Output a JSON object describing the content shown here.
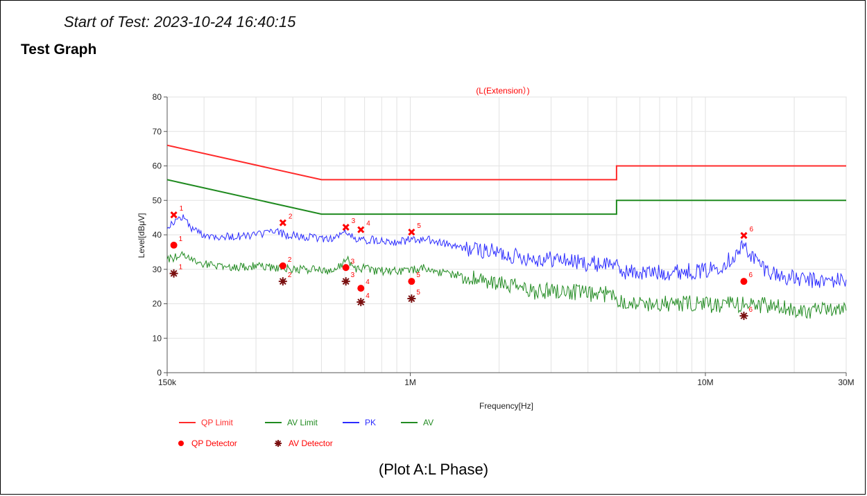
{
  "header": {
    "start_of_test": "Start of Test: 2023-10-24 16:40:15",
    "graph_heading": "Test Graph"
  },
  "caption": "(Plot A:L Phase)",
  "colors": {
    "qp_limit": "#ff2a2a",
    "av_limit": "#1f8a1f",
    "pk": "#2b2bff",
    "av": "#228b22",
    "qp_detector": "#ff0000",
    "av_detector": "#7a1010",
    "marker_label": "#ff0000"
  },
  "chart_data": {
    "type": "line",
    "title": "(L(Extension）)",
    "xlabel": "Frequency[Hz]",
    "ylabel": "Level[dBμV]",
    "x_scale": "log",
    "xlim": [
      150000,
      30000000
    ],
    "ylim": [
      0,
      80
    ],
    "x_ticks": [
      {
        "value": 150000,
        "label": "150k"
      },
      {
        "value": 1000000,
        "label": "1M"
      },
      {
        "value": 10000000,
        "label": "10M"
      },
      {
        "value": 30000000,
        "label": "30M"
      }
    ],
    "y_ticks": [
      0,
      10,
      20,
      30,
      40,
      50,
      60,
      70,
      80
    ],
    "grid": true,
    "legend_position": "bottom-left",
    "series": [
      {
        "name": "QP Limit",
        "kind": "line",
        "color": "#ff2a2a",
        "points": [
          [
            150000,
            66
          ],
          [
            500000,
            56
          ],
          [
            5000000,
            56
          ],
          [
            5000000,
            60
          ],
          [
            30000000,
            60
          ]
        ]
      },
      {
        "name": "AV Limit",
        "kind": "line",
        "color": "#1f8a1f",
        "points": [
          [
            150000,
            56
          ],
          [
            500000,
            46
          ],
          [
            5000000,
            46
          ],
          [
            5000000,
            50
          ],
          [
            30000000,
            50
          ]
        ]
      },
      {
        "name": "PK",
        "kind": "line",
        "color": "#2b2bff",
        "points": [
          [
            150000,
            42.5
          ],
          [
            160000,
            43.8
          ],
          [
            170000,
            45.5
          ],
          [
            180000,
            42.0
          ],
          [
            200000,
            40.0
          ],
          [
            230000,
            39.5
          ],
          [
            260000,
            39.5
          ],
          [
            300000,
            40.0
          ],
          [
            350000,
            41.0
          ],
          [
            380000,
            40.0
          ],
          [
            420000,
            39.5
          ],
          [
            480000,
            39.0
          ],
          [
            550000,
            39.0
          ],
          [
            610000,
            41.0
          ],
          [
            650000,
            38.5
          ],
          [
            700000,
            38.5
          ],
          [
            800000,
            38.5
          ],
          [
            900000,
            38.0
          ],
          [
            1000000,
            38.5
          ],
          [
            1150000,
            38.5
          ],
          [
            1300000,
            37.5
          ],
          [
            1500000,
            36.0
          ],
          [
            1800000,
            35.5
          ],
          [
            2200000,
            34.0
          ],
          [
            2700000,
            33.0
          ],
          [
            3200000,
            33.0
          ],
          [
            3700000,
            32.0
          ],
          [
            4300000,
            31.5
          ],
          [
            4900000,
            32.0
          ],
          [
            5100000,
            29.5
          ],
          [
            6000000,
            29.0
          ],
          [
            7000000,
            29.0
          ],
          [
            8500000,
            29.5
          ],
          [
            10000000,
            29.5
          ],
          [
            11500000,
            31.5
          ],
          [
            12800000,
            34.5
          ],
          [
            13500000,
            37.0
          ],
          [
            14500000,
            33.5
          ],
          [
            16000000,
            30.0
          ],
          [
            18000000,
            28.0
          ],
          [
            21000000,
            27.0
          ],
          [
            25000000,
            26.5
          ],
          [
            30000000,
            27.0
          ]
        ]
      },
      {
        "name": "AV",
        "kind": "line",
        "color": "#228b22",
        "points": [
          [
            150000,
            33.0
          ],
          [
            160000,
            33.5
          ],
          [
            170000,
            34.5
          ],
          [
            180000,
            33.0
          ],
          [
            200000,
            31.5
          ],
          [
            230000,
            31.0
          ],
          [
            260000,
            30.5
          ],
          [
            300000,
            31.0
          ],
          [
            350000,
            30.5
          ],
          [
            400000,
            30.0
          ],
          [
            480000,
            30.0
          ],
          [
            550000,
            29.5
          ],
          [
            610000,
            33.0
          ],
          [
            650000,
            30.0
          ],
          [
            700000,
            30.5
          ],
          [
            750000,
            29.5
          ],
          [
            850000,
            29.5
          ],
          [
            1000000,
            29.5
          ],
          [
            1100000,
            30.5
          ],
          [
            1200000,
            29.5
          ],
          [
            1400000,
            28.5
          ],
          [
            1600000,
            27.5
          ],
          [
            1900000,
            26.0
          ],
          [
            2300000,
            25.0
          ],
          [
            2600000,
            23.5
          ],
          [
            3000000,
            24.0
          ],
          [
            3500000,
            23.5
          ],
          [
            4200000,
            22.5
          ],
          [
            4900000,
            23.0
          ],
          [
            5100000,
            21.0
          ],
          [
            6000000,
            20.0
          ],
          [
            7500000,
            20.0
          ],
          [
            9000000,
            20.0
          ],
          [
            11000000,
            19.5
          ],
          [
            13500000,
            20.0
          ],
          [
            16000000,
            19.5
          ],
          [
            19000000,
            18.5
          ],
          [
            23000000,
            18.0
          ],
          [
            30000000,
            18.0
          ]
        ]
      }
    ],
    "qp_peak_markers": [
      {
        "id": "1",
        "x": 158000,
        "y": 45.8
      },
      {
        "id": "2",
        "x": 370000,
        "y": 43.5
      },
      {
        "id": "3",
        "x": 605000,
        "y": 42.2
      },
      {
        "id": "4",
        "x": 680000,
        "y": 41.5
      },
      {
        "id": "5",
        "x": 1010000,
        "y": 40.8
      },
      {
        "id": "6",
        "x": 13500000,
        "y": 39.8
      }
    ],
    "detectors": [
      {
        "name": "QP Detector",
        "color": "#ff0000",
        "points": [
          {
            "id": "1",
            "x": 158000,
            "y": 37.0
          },
          {
            "id": "2",
            "x": 370000,
            "y": 31.0
          },
          {
            "id": "3",
            "x": 605000,
            "y": 30.5
          },
          {
            "id": "4",
            "x": 680000,
            "y": 24.5
          },
          {
            "id": "5",
            "x": 1010000,
            "y": 26.5
          },
          {
            "id": "6",
            "x": 13500000,
            "y": 26.5
          }
        ]
      },
      {
        "name": "AV Detector",
        "color": "#7a1010",
        "points": [
          {
            "id": "1",
            "x": 158000,
            "y": 28.8
          },
          {
            "id": "2",
            "x": 370000,
            "y": 26.5
          },
          {
            "id": "3",
            "x": 605000,
            "y": 26.5
          },
          {
            "id": "4",
            "x": 680000,
            "y": 20.5
          },
          {
            "id": "5",
            "x": 1010000,
            "y": 21.5
          },
          {
            "id": "6",
            "x": 13500000,
            "y": 16.5
          }
        ]
      }
    ],
    "legend": [
      {
        "label": "QP Limit",
        "symbol": "line",
        "color": "#ff2a2a"
      },
      {
        "label": "AV Limit",
        "symbol": "line",
        "color": "#1f8a1f"
      },
      {
        "label": "PK",
        "symbol": "line",
        "color": "#2b2bff"
      },
      {
        "label": "AV",
        "symbol": "line",
        "color": "#228b22"
      },
      {
        "label": "QP Detector",
        "symbol": "dot",
        "color": "#ff0000"
      },
      {
        "label": "AV Detector",
        "symbol": "star",
        "color": "#7a1010"
      }
    ]
  }
}
